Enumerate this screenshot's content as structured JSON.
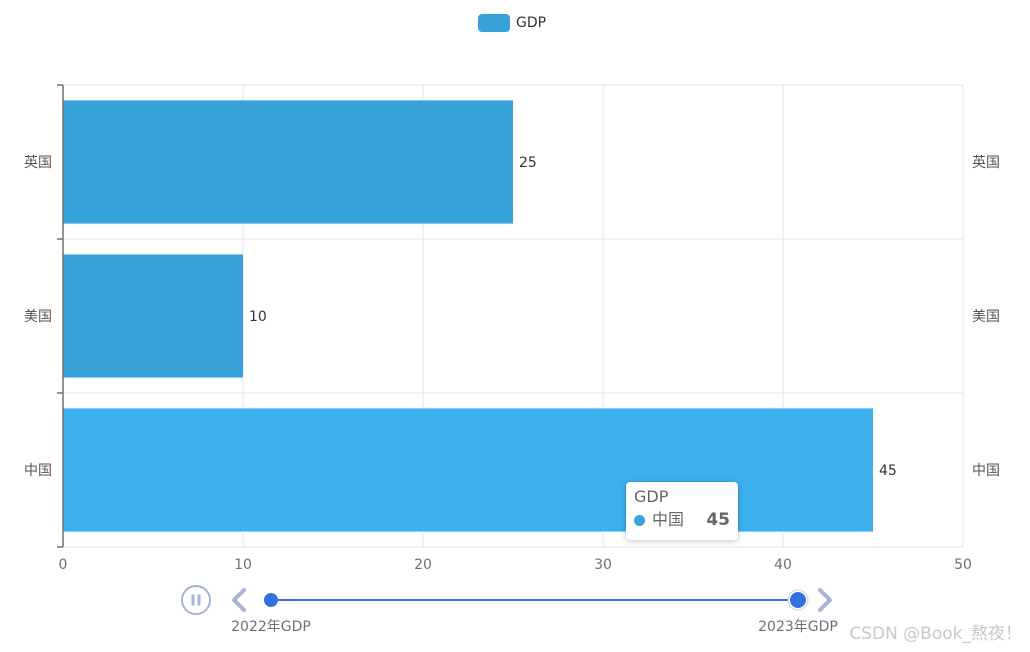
{
  "chart_data": {
    "type": "bar",
    "orientation": "horizontal",
    "categories": [
      "中国",
      "美国",
      "英国"
    ],
    "series": [
      {
        "name": "GDP",
        "values": [
          45,
          10,
          25
        ],
        "color": "#37a2da",
        "highlight_color": "#3db0ee"
      }
    ],
    "xlim": [
      0,
      50
    ],
    "xticks": [
      "0",
      "10",
      "20",
      "30",
      "40",
      "50"
    ],
    "grid": true,
    "legend_position": "top-center",
    "right_axis_labels": true
  },
  "legend": {
    "label": "GDP"
  },
  "tooltip": {
    "title": "GDP",
    "name": "中国",
    "value": "45"
  },
  "timeline": {
    "labels": [
      "2022年GDP",
      "2023年GDP"
    ],
    "current_index": 1,
    "accent": "#3570e0",
    "control_color": "#a7b4d5"
  },
  "watermark": "CSDN @Book_熬夜！"
}
